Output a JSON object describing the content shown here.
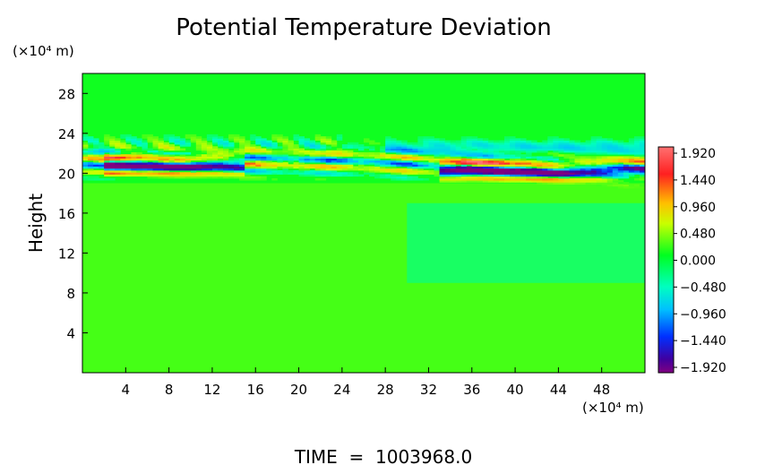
{
  "chart_data": {
    "type": "heatmap",
    "title": "Potential Temperature Deviation",
    "ylabel": "Height",
    "xunit": "(×10⁴ m)",
    "yunit": "(×10⁴ m)",
    "xlim": [
      0,
      52
    ],
    "ylim": [
      0,
      30
    ],
    "xticks": [
      "4",
      "8",
      "12",
      "16",
      "20",
      "24",
      "28",
      "32",
      "36",
      "40",
      "44",
      "48"
    ],
    "yticks": [
      "4",
      "8",
      "12",
      "16",
      "20",
      "24",
      "28"
    ],
    "colorbar": {
      "range": [
        -1.92,
        1.92
      ],
      "labels": [
        "1.920",
        "1.440",
        "0.960",
        "0.480",
        "0.000",
        "−0.480",
        "−0.960",
        "−1.440",
        "−1.920"
      ]
    },
    "features": [
      {
        "kind": "oscillating band",
        "x_range": [
          0,
          52
        ],
        "y_range": [
          19.5,
          23.5
        ],
        "value_range": [
          -1.92,
          1.92
        ]
      },
      {
        "kind": "strong negative layer",
        "x_range": [
          2,
          15
        ],
        "y_range": [
          20.4,
          21.2
        ],
        "value": -1.92
      },
      {
        "kind": "strong negative layer",
        "x_range": [
          33,
          52
        ],
        "y_range": [
          19.8,
          20.6
        ],
        "value": -1.92
      },
      {
        "kind": "weak positive background",
        "x_range": [
          0,
          52
        ],
        "y_range": [
          0,
          19
        ],
        "value": 0.2
      },
      {
        "kind": "weak negative patch",
        "x_range": [
          30,
          52
        ],
        "y_range": [
          9,
          17
        ],
        "value": -0.2
      }
    ],
    "footer": "TIME  =  1003968.0"
  }
}
